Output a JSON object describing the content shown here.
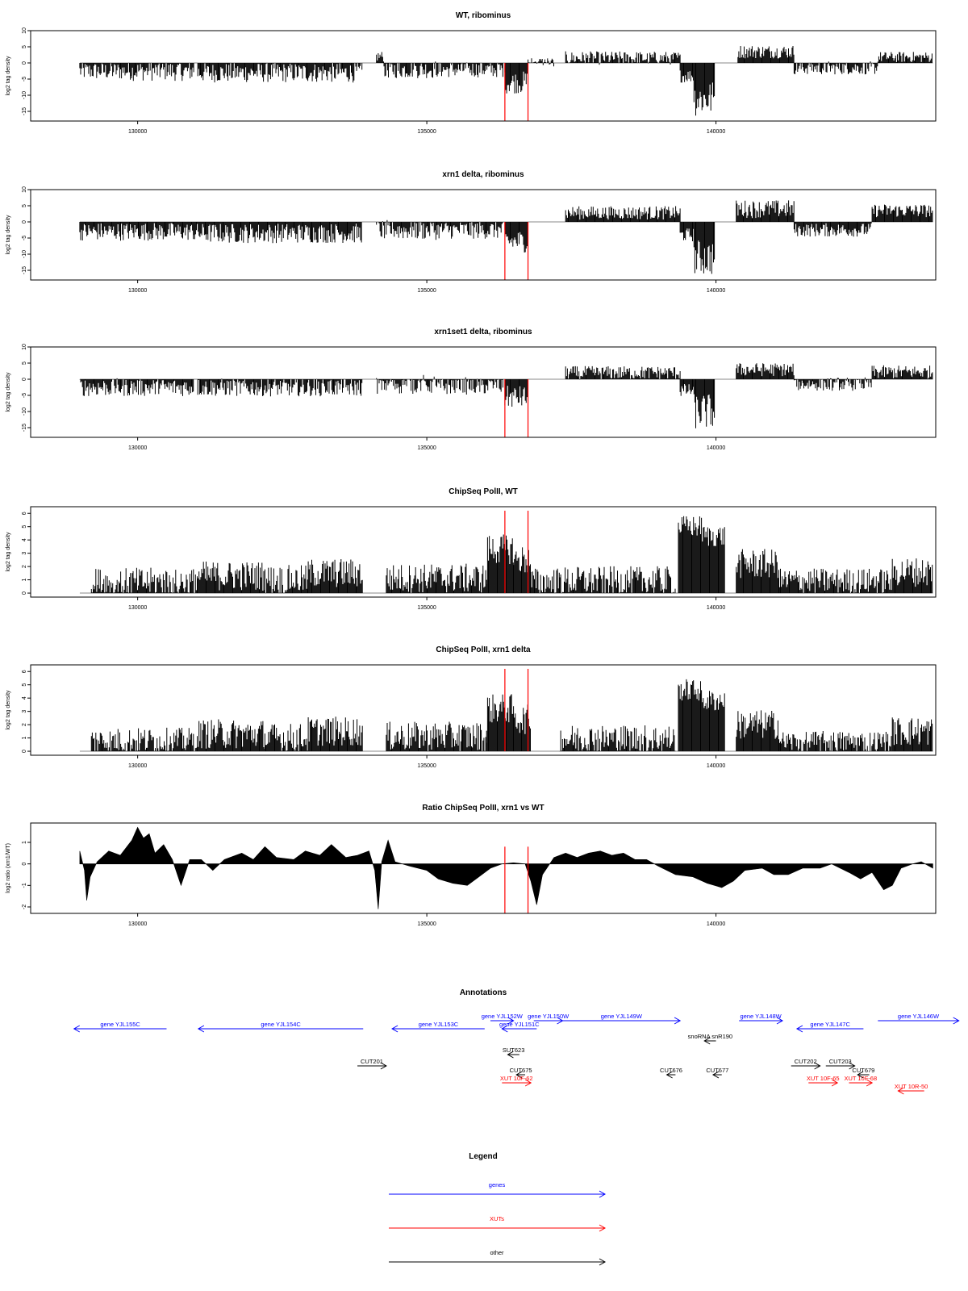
{
  "colors": {
    "gene": "#0000ff",
    "xut": "#ff0000",
    "other": "#000000",
    "marker": "#ff0000",
    "fill": "#000000"
  },
  "chart_data": [
    {
      "type": "area",
      "title": "WT, ribominus",
      "ylabel": "log2 tag density",
      "xlim": [
        128150,
        143800
      ],
      "ylim": [
        -18,
        10
      ],
      "yticks": [
        10,
        5,
        0,
        -5,
        -10,
        -15
      ],
      "ytick_labels": [
        "10",
        "5",
        "0",
        "-5",
        "-10",
        "-15"
      ],
      "xticks": [
        130000,
        135000,
        140000
      ],
      "xtick_labels": [
        "130000",
        "135000",
        "140000"
      ],
      "markers": [
        136350,
        136750
      ],
      "marker_extent": [
        -18,
        0
      ],
      "segments": [
        {
          "x0": 129000,
          "x1": 129880,
          "v": -2.5,
          "n": 2.0
        },
        {
          "x0": 129880,
          "x1": 130970,
          "v": -2.5,
          "n": 2.2
        },
        {
          "x0": 131040,
          "x1": 133880,
          "v": -3.0,
          "n": 2.2
        },
        {
          "x0": 134130,
          "x1": 134260,
          "v": 2.0,
          "n": 1.2
        },
        {
          "x0": 134260,
          "x1": 135180,
          "v": -2.0,
          "n": 2.0
        },
        {
          "x0": 135180,
          "x1": 136320,
          "v": -2.0,
          "n": 1.8
        },
        {
          "x0": 136350,
          "x1": 136750,
          "v": -6.0,
          "n": 2.5
        },
        {
          "x0": 136750,
          "x1": 137200,
          "v": 0.3,
          "n": 1.0
        },
        {
          "x0": 137400,
          "x1": 139380,
          "v": 1.5,
          "n": 1.5
        },
        {
          "x0": 139380,
          "x1": 139620,
          "v": -4.0,
          "n": 1.5
        },
        {
          "x0": 139620,
          "x1": 139980,
          "v": -11.0,
          "n": 4.0
        },
        {
          "x0": 140380,
          "x1": 141350,
          "v": 3.5,
          "n": 1.5
        },
        {
          "x0": 141350,
          "x1": 142800,
          "v": -1.5,
          "n": 1.5
        },
        {
          "x0": 142800,
          "x1": 143750,
          "v": 1.8,
          "n": 1.2
        }
      ]
    },
    {
      "type": "area",
      "title": "xrn1 delta, ribominus",
      "ylabel": "log2 tag density",
      "xlim": [
        128150,
        143800
      ],
      "ylim": [
        -18,
        10
      ],
      "yticks": [
        10,
        5,
        0,
        -5,
        -10,
        -15
      ],
      "ytick_labels": [
        "10",
        "5",
        "0",
        "-5",
        "-10",
        "-15"
      ],
      "xticks": [
        130000,
        135000,
        140000
      ],
      "xtick_labels": [
        "130000",
        "135000",
        "140000"
      ],
      "markers": [
        136350,
        136750
      ],
      "marker_extent": [
        -18,
        0
      ],
      "segments": [
        {
          "x0": 129000,
          "x1": 130970,
          "v": -3.0,
          "n": 2.0
        },
        {
          "x0": 130970,
          "x1": 133880,
          "v": -3.5,
          "n": 2.2
        },
        {
          "x0": 134130,
          "x1": 135180,
          "v": -2.5,
          "n": 2.2
        },
        {
          "x0": 135180,
          "x1": 136320,
          "v": -2.5,
          "n": 2.0
        },
        {
          "x0": 136350,
          "x1": 136750,
          "v": -6.0,
          "n": 2.5
        },
        {
          "x0": 137400,
          "x1": 139380,
          "v": 2.8,
          "n": 1.5
        },
        {
          "x0": 139380,
          "x1": 139620,
          "v": -4.0,
          "n": 1.5
        },
        {
          "x0": 139620,
          "x1": 139980,
          "v": -11.0,
          "n": 4.0
        },
        {
          "x0": 140350,
          "x1": 141350,
          "v": 4.0,
          "n": 2.0
        },
        {
          "x0": 141350,
          "x1": 142700,
          "v": -2.5,
          "n": 1.5
        },
        {
          "x0": 142700,
          "x1": 143750,
          "v": 3.5,
          "n": 1.5
        }
      ]
    },
    {
      "type": "area",
      "title": "xrn1set1 delta, ribominus",
      "ylabel": "log2 tag density",
      "xlim": [
        128150,
        143800
      ],
      "ylim": [
        -18,
        10
      ],
      "yticks": [
        10,
        5,
        0,
        -5,
        -10,
        -15
      ],
      "ytick_labels": [
        "10",
        "5",
        "0",
        "-5",
        "-10",
        "-15"
      ],
      "xticks": [
        130000,
        135000,
        140000
      ],
      "xtick_labels": [
        "130000",
        "135000",
        "140000"
      ],
      "markers": [
        136350,
        136750
      ],
      "marker_extent": [
        -18,
        0
      ],
      "segments": [
        {
          "x0": 129000,
          "x1": 130970,
          "v": -2.5,
          "n": 2.0
        },
        {
          "x0": 131040,
          "x1": 133880,
          "v": -2.5,
          "n": 2.0
        },
        {
          "x0": 134130,
          "x1": 135180,
          "v": -1.5,
          "n": 2.2
        },
        {
          "x0": 135180,
          "x1": 136320,
          "v": -2.0,
          "n": 2.0
        },
        {
          "x0": 136350,
          "x1": 136750,
          "v": -5.5,
          "n": 2.5
        },
        {
          "x0": 137400,
          "x1": 139380,
          "v": 2.0,
          "n": 1.5
        },
        {
          "x0": 139380,
          "x1": 139620,
          "v": -3.5,
          "n": 1.5
        },
        {
          "x0": 139620,
          "x1": 139980,
          "v": -10.0,
          "n": 4.0
        },
        {
          "x0": 140350,
          "x1": 141350,
          "v": 3.0,
          "n": 1.5
        },
        {
          "x0": 141350,
          "x1": 142700,
          "v": -1.5,
          "n": 1.5
        },
        {
          "x0": 142700,
          "x1": 143750,
          "v": 2.2,
          "n": 1.5
        }
      ]
    },
    {
      "type": "area",
      "title": "ChipSeq PolII, WT",
      "ylabel": "log2 tag density",
      "xlim": [
        128150,
        143800
      ],
      "ylim": [
        -0.3,
        6.5
      ],
      "yticks": [
        6,
        5,
        4,
        3,
        2,
        1,
        0
      ],
      "ytick_labels": [
        "6",
        "5",
        "4",
        "3",
        "2",
        "1",
        "0"
      ],
      "xticks": [
        130000,
        135000,
        140000
      ],
      "xtick_labels": [
        "130000",
        "135000",
        "140000"
      ],
      "markers": [
        136350,
        136750
      ],
      "marker_extent": [
        0,
        6.2
      ],
      "segments": [
        {
          "x0": 129200,
          "x1": 130970,
          "v": 0.8,
          "n": 0.8
        },
        {
          "x0": 131000,
          "x1": 132200,
          "v": 1.3,
          "n": 0.8
        },
        {
          "x0": 132200,
          "x1": 132950,
          "v": 1.0,
          "n": 0.8
        },
        {
          "x0": 132950,
          "x1": 133900,
          "v": 1.5,
          "n": 0.8
        },
        {
          "x0": 134300,
          "x1": 136050,
          "v": 1.1,
          "n": 0.8
        },
        {
          "x0": 136050,
          "x1": 136500,
          "v": 3.3,
          "n": 0.8
        },
        {
          "x0": 136500,
          "x1": 136800,
          "v": 2.5,
          "n": 0.8
        },
        {
          "x0": 136800,
          "x1": 137300,
          "v": 0.8,
          "n": 0.8
        },
        {
          "x0": 137300,
          "x1": 139300,
          "v": 0.9,
          "n": 0.8
        },
        {
          "x0": 139350,
          "x1": 139750,
          "v": 5.0,
          "n": 0.6
        },
        {
          "x0": 139750,
          "x1": 140150,
          "v": 4.3,
          "n": 0.6
        },
        {
          "x0": 140350,
          "x1": 141100,
          "v": 2.2,
          "n": 0.8
        },
        {
          "x0": 141100,
          "x1": 143050,
          "v": 0.9,
          "n": 0.7
        },
        {
          "x0": 143050,
          "x1": 143750,
          "v": 1.6,
          "n": 0.8
        }
      ]
    },
    {
      "type": "area",
      "title": "ChipSeq PolII, xrn1 delta",
      "ylabel": "log2 tag density",
      "xlim": [
        128150,
        143800
      ],
      "ylim": [
        -0.3,
        6.5
      ],
      "yticks": [
        6,
        5,
        4,
        3,
        2,
        1,
        0
      ],
      "ytick_labels": [
        "6",
        "5",
        "4",
        "3",
        "2",
        "1",
        "0"
      ],
      "xticks": [
        130000,
        135000,
        140000
      ],
      "xtick_labels": [
        "130000",
        "135000",
        "140000"
      ],
      "markers": [
        136350,
        136750
      ],
      "marker_extent": [
        0,
        6.2
      ],
      "segments": [
        {
          "x0": 129200,
          "x1": 130970,
          "v": 0.8,
          "n": 0.7
        },
        {
          "x0": 131000,
          "x1": 132200,
          "v": 1.3,
          "n": 0.8
        },
        {
          "x0": 132200,
          "x1": 132950,
          "v": 1.0,
          "n": 0.8
        },
        {
          "x0": 132950,
          "x1": 133900,
          "v": 1.5,
          "n": 0.8
        },
        {
          "x0": 134300,
          "x1": 136050,
          "v": 1.1,
          "n": 0.8
        },
        {
          "x0": 136050,
          "x1": 136500,
          "v": 3.2,
          "n": 0.8
        },
        {
          "x0": 136500,
          "x1": 136800,
          "v": 2.4,
          "n": 0.8
        },
        {
          "x0": 137300,
          "x1": 139300,
          "v": 0.9,
          "n": 0.8
        },
        {
          "x0": 139350,
          "x1": 139750,
          "v": 4.6,
          "n": 0.6
        },
        {
          "x0": 139750,
          "x1": 140150,
          "v": 3.8,
          "n": 0.6
        },
        {
          "x0": 140350,
          "x1": 141100,
          "v": 2.0,
          "n": 0.8
        },
        {
          "x0": 141100,
          "x1": 143050,
          "v": 0.7,
          "n": 0.6
        },
        {
          "x0": 143050,
          "x1": 143750,
          "v": 1.5,
          "n": 0.8
        }
      ]
    },
    {
      "type": "area",
      "title": "Ratio ChipSeq PolII, xrn1 vs WT",
      "ylabel": "log2 ratio (xrn1/WT)",
      "xlim": [
        128150,
        143800
      ],
      "ylim": [
        -2.3,
        1.9
      ],
      "yticks": [
        1,
        0,
        -1,
        -2
      ],
      "ytick_labels": [
        "1",
        "0",
        "-1",
        "-2"
      ],
      "xticks": [
        130000,
        135000,
        140000
      ],
      "xtick_labels": [
        "130000",
        "135000",
        "140000"
      ],
      "markers": [
        136350,
        136750
      ],
      "marker_extent": [
        -2.3,
        0.8
      ],
      "profile": [
        [
          129000,
          0.6
        ],
        [
          129080,
          -0.3
        ],
        [
          129120,
          -1.7
        ],
        [
          129180,
          -0.6
        ],
        [
          129300,
          0.1
        ],
        [
          129500,
          0.6
        ],
        [
          129700,
          0.4
        ],
        [
          129900,
          1.1
        ],
        [
          130000,
          1.7
        ],
        [
          130100,
          1.2
        ],
        [
          130200,
          1.4
        ],
        [
          130300,
          0.5
        ],
        [
          130450,
          0.9
        ],
        [
          130600,
          0.2
        ],
        [
          130750,
          -1.0
        ],
        [
          130900,
          0.2
        ],
        [
          131100,
          0.2
        ],
        [
          131300,
          -0.3
        ],
        [
          131500,
          0.2
        ],
        [
          131800,
          0.5
        ],
        [
          132000,
          0.2
        ],
        [
          132200,
          0.8
        ],
        [
          132400,
          0.3
        ],
        [
          132700,
          0.2
        ],
        [
          132900,
          0.6
        ],
        [
          133150,
          0.4
        ],
        [
          133350,
          0.9
        ],
        [
          133600,
          0.3
        ],
        [
          133800,
          0.4
        ],
        [
          134000,
          0.6
        ],
        [
          134100,
          -0.3
        ],
        [
          134160,
          -2.1
        ],
        [
          134220,
          0.1
        ],
        [
          134330,
          1.1
        ],
        [
          134450,
          0.1
        ],
        [
          134700,
          -0.1
        ],
        [
          135000,
          -0.3
        ],
        [
          135200,
          -0.7
        ],
        [
          135450,
          -0.9
        ],
        [
          135700,
          -1.0
        ],
        [
          135900,
          -0.6
        ],
        [
          136100,
          -0.2
        ],
        [
          136300,
          0.0
        ],
        [
          136500,
          0.05
        ],
        [
          136700,
          0.0
        ],
        [
          136800,
          -0.8
        ],
        [
          136900,
          -1.9
        ],
        [
          137000,
          -0.5
        ],
        [
          137200,
          0.3
        ],
        [
          137400,
          0.5
        ],
        [
          137600,
          0.3
        ],
        [
          137800,
          0.5
        ],
        [
          138000,
          0.6
        ],
        [
          138200,
          0.4
        ],
        [
          138400,
          0.5
        ],
        [
          138600,
          0.2
        ],
        [
          138800,
          0.2
        ],
        [
          139000,
          -0.1
        ],
        [
          139300,
          -0.5
        ],
        [
          139600,
          -0.6
        ],
        [
          139850,
          -0.9
        ],
        [
          140100,
          -1.1
        ],
        [
          140300,
          -0.8
        ],
        [
          140500,
          -0.3
        ],
        [
          140800,
          -0.2
        ],
        [
          141000,
          -0.5
        ],
        [
          141250,
          -0.5
        ],
        [
          141500,
          -0.2
        ],
        [
          141800,
          -0.2
        ],
        [
          142000,
          0.0
        ],
        [
          142300,
          -0.4
        ],
        [
          142500,
          -0.7
        ],
        [
          142700,
          -0.4
        ],
        [
          142900,
          -1.2
        ],
        [
          143050,
          -1.0
        ],
        [
          143200,
          -0.2
        ],
        [
          143400,
          0.0
        ],
        [
          143550,
          0.1
        ],
        [
          143750,
          -0.2
        ]
      ]
    }
  ],
  "annotations": {
    "title": "Annotations",
    "features": [
      {
        "label": "gene YJL155C",
        "type": "gene",
        "dir": "left",
        "x0": 128900,
        "x1": 130500,
        "row": 0
      },
      {
        "label": "gene YJL154C",
        "type": "gene",
        "dir": "left",
        "x0": 131050,
        "x1": 133900,
        "row": 0
      },
      {
        "label": "gene YJL153C",
        "type": "gene",
        "dir": "left",
        "x0": 134400,
        "x1": 136000,
        "row": 0
      },
      {
        "label": "gene YJL152W",
        "type": "gene",
        "dir": "right",
        "x0": 136100,
        "x1": 136500,
        "row": -1
      },
      {
        "label": "gene YJL151C",
        "type": "gene",
        "dir": "left",
        "x0": 136300,
        "x1": 136900,
        "row": 0
      },
      {
        "label": "gene YJL150W",
        "type": "gene",
        "dir": "right",
        "x0": 136850,
        "x1": 137350,
        "row": -1
      },
      {
        "label": "gene YJL149W",
        "type": "gene",
        "dir": "right",
        "x0": 137350,
        "x1": 139380,
        "row": -1
      },
      {
        "label": "gene YJL148W",
        "type": "gene",
        "dir": "right",
        "x0": 140400,
        "x1": 141150,
        "row": -1
      },
      {
        "label": "gene YJL147C",
        "type": "gene",
        "dir": "left",
        "x0": 141400,
        "x1": 142550,
        "row": 0
      },
      {
        "label": "gene YJL146W",
        "type": "gene",
        "dir": "right",
        "x0": 142800,
        "x1": 144200,
        "row": -1
      },
      {
        "label": "snoRNA snR190",
        "type": "other",
        "dir": "left",
        "x0": 139800,
        "x1": 140000,
        "row": 2
      },
      {
        "label": "SUT623",
        "type": "other",
        "dir": "left",
        "x0": 136400,
        "x1": 136600,
        "row": 3
      },
      {
        "label": "CUT201",
        "type": "other",
        "dir": "right",
        "x0": 133800,
        "x1": 134300,
        "row": 4
      },
      {
        "label": "CUT202",
        "type": "other",
        "dir": "right",
        "x0": 141300,
        "x1": 141800,
        "row": 4
      },
      {
        "label": "CUT203",
        "type": "other",
        "dir": "right",
        "x0": 141900,
        "x1": 142400,
        "row": 4
      },
      {
        "label": "CUT675",
        "type": "other",
        "dir": "left",
        "x0": 136550,
        "x1": 136700,
        "row": 5
      },
      {
        "label": "CUT676",
        "type": "other",
        "dir": "left",
        "x0": 139150,
        "x1": 139300,
        "row": 5
      },
      {
        "label": "CUT677",
        "type": "other",
        "dir": "left",
        "x0": 139950,
        "x1": 140100,
        "row": 5
      },
      {
        "label": "CUT679",
        "type": "other",
        "dir": "left",
        "x0": 142450,
        "x1": 142650,
        "row": 5
      },
      {
        "label": "XUT 10F-62",
        "type": "xut",
        "dir": "right",
        "x0": 136300,
        "x1": 136800,
        "row": 6
      },
      {
        "label": "XUT 10F-65",
        "type": "xut",
        "dir": "right",
        "x0": 141600,
        "x1": 142100,
        "row": 6
      },
      {
        "label": "XUT 10F-68",
        "type": "xut",
        "dir": "right",
        "x0": 142300,
        "x1": 142700,
        "row": 6
      },
      {
        "label": "XUT 10R-50",
        "type": "xut",
        "dir": "left",
        "x0": 143150,
        "x1": 143600,
        "row": 7
      }
    ]
  },
  "legend": {
    "title": "Legend",
    "items": [
      {
        "label": "genes",
        "type": "gene"
      },
      {
        "label": "XUTs",
        "type": "xut"
      },
      {
        "label": "other",
        "type": "other"
      }
    ]
  }
}
